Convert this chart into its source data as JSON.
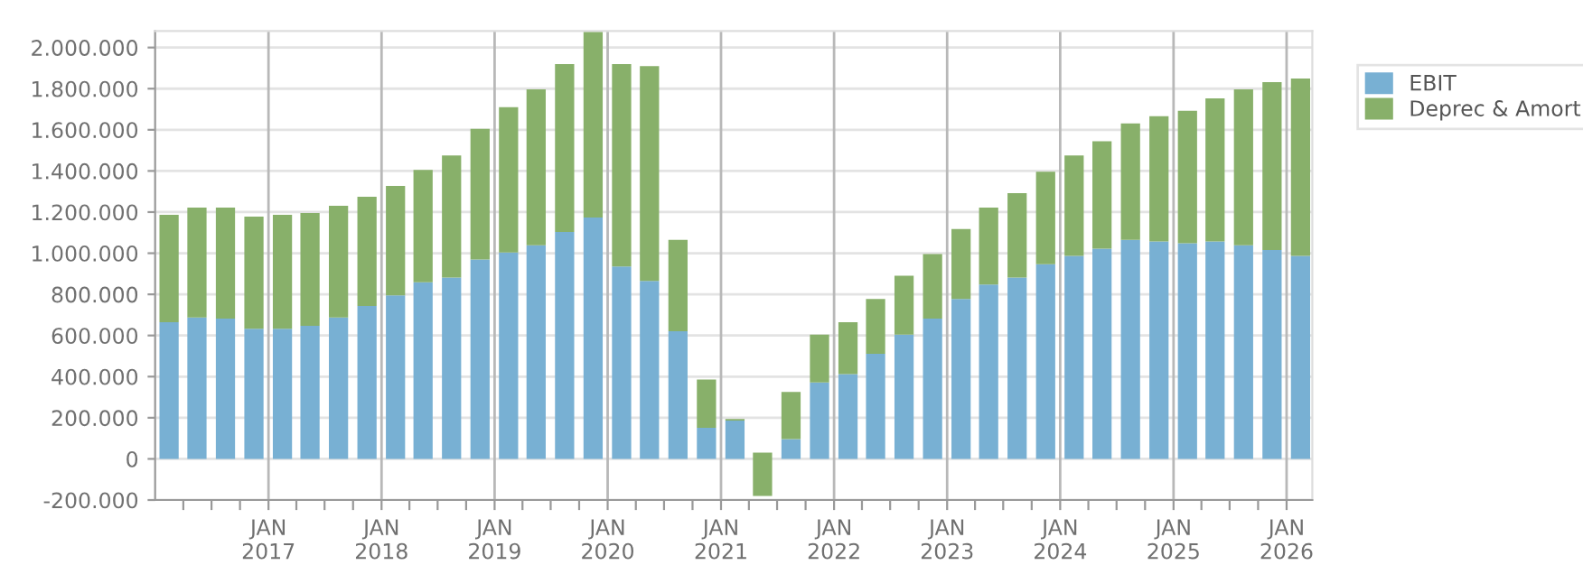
{
  "chart_data": {
    "type": "bar",
    "stacked": true,
    "x": [
      "2016-02-15",
      "2016-05-15",
      "2016-08-15",
      "2016-11-15",
      "2017-02-15",
      "2017-05-15",
      "2017-08-15",
      "2017-11-15",
      "2018-02-15",
      "2018-05-15",
      "2018-08-15",
      "2018-11-15",
      "2019-02-15",
      "2019-05-15",
      "2019-08-15",
      "2019-11-15",
      "2020-02-15",
      "2020-05-15",
      "2020-08-15",
      "2020-11-15",
      "2021-02-15",
      "2021-05-15",
      "2021-08-15",
      "2021-11-15",
      "2022-02-15",
      "2022-05-15",
      "2022-08-15",
      "2022-11-15",
      "2023-02-15",
      "2023-05-15",
      "2023-08-15",
      "2023-11-15",
      "2024-02-15",
      "2024-05-15",
      "2024-08-15",
      "2024-11-15",
      "2025-02-15",
      "2025-05-15",
      "2025-08-15",
      "2025-11-15",
      "2026-02-15"
    ],
    "series": [
      {
        "name": "EBIT",
        "color": "#78b0d3",
        "values": [
          665000,
          688000,
          682000,
          633000,
          633000,
          647000,
          688000,
          743000,
          795000,
          859000,
          882000,
          970000,
          1004000,
          1039000,
          1103000,
          1173000,
          935000,
          865000,
          621000,
          151000,
          186000,
          null,
          96000,
          372000,
          412000,
          511000,
          604000,
          682000,
          778000,
          848000,
          882000,
          946000,
          987000,
          1022000,
          1065000,
          1057000,
          1048000,
          1057000,
          1039000,
          1016000,
          987000
        ]
      },
      {
        "name": "Deprec & Amort",
        "color": "#88b06a",
        "values": [
          522000,
          534000,
          540000,
          545000,
          554000,
          549000,
          543000,
          531000,
          532000,
          546000,
          593000,
          635000,
          706000,
          758000,
          816000,
          902000,
          984000,
          1045000,
          444000,
          235000,
          8000,
          210000,
          229000,
          232000,
          253000,
          267000,
          287000,
          314000,
          340000,
          374000,
          410000,
          450000,
          488000,
          522000,
          566000,
          609000,
          644000,
          696000,
          758000,
          816000,
          862000
        ],
        "base": [
          null,
          null,
          null,
          null,
          null,
          null,
          null,
          null,
          null,
          null,
          null,
          null,
          null,
          null,
          null,
          null,
          null,
          null,
          null,
          null,
          null,
          -180000,
          null,
          null,
          null,
          null,
          null,
          null,
          null,
          null,
          null,
          null,
          null,
          null,
          null,
          null,
          null,
          null,
          null,
          null,
          null
        ]
      }
    ],
    "xlim": [
      "2016-01-01",
      "2026-03-25"
    ],
    "xticks": [
      {
        "value": "2016-04-01",
        "label": null
      },
      {
        "value": "2016-07-01",
        "label": null
      },
      {
        "value": "2016-10-01",
        "label": null
      },
      {
        "value": "2017-01-01",
        "label": "JAN\n2017"
      },
      {
        "value": "2017-04-01",
        "label": null
      },
      {
        "value": "2017-07-01",
        "label": null
      },
      {
        "value": "2017-10-01",
        "label": null
      },
      {
        "value": "2018-01-01",
        "label": "JAN\n2018"
      },
      {
        "value": "2018-04-01",
        "label": null
      },
      {
        "value": "2018-07-01",
        "label": null
      },
      {
        "value": "2018-10-01",
        "label": null
      },
      {
        "value": "2019-01-01",
        "label": "JAN\n2019"
      },
      {
        "value": "2019-04-01",
        "label": null
      },
      {
        "value": "2019-07-01",
        "label": null
      },
      {
        "value": "2019-10-01",
        "label": null
      },
      {
        "value": "2020-01-01",
        "label": "JAN\n2020"
      },
      {
        "value": "2020-04-01",
        "label": null
      },
      {
        "value": "2020-07-01",
        "label": null
      },
      {
        "value": "2020-10-01",
        "label": null
      },
      {
        "value": "2021-01-01",
        "label": "JAN\n2021"
      },
      {
        "value": "2021-04-01",
        "label": null
      },
      {
        "value": "2021-07-01",
        "label": null
      },
      {
        "value": "2021-10-01",
        "label": null
      },
      {
        "value": "2022-01-01",
        "label": "JAN\n2022"
      },
      {
        "value": "2022-04-01",
        "label": null
      },
      {
        "value": "2022-07-01",
        "label": null
      },
      {
        "value": "2022-10-01",
        "label": null
      },
      {
        "value": "2023-01-01",
        "label": "JAN\n2023"
      },
      {
        "value": "2023-04-01",
        "label": null
      },
      {
        "value": "2023-07-01",
        "label": null
      },
      {
        "value": "2023-10-01",
        "label": null
      },
      {
        "value": "2024-01-01",
        "label": "JAN\n2024"
      },
      {
        "value": "2024-04-01",
        "label": null
      },
      {
        "value": "2024-07-01",
        "label": null
      },
      {
        "value": "2024-10-01",
        "label": null
      },
      {
        "value": "2025-01-01",
        "label": "JAN\n2025"
      },
      {
        "value": "2025-04-01",
        "label": null
      },
      {
        "value": "2025-07-01",
        "label": null
      },
      {
        "value": "2025-10-01",
        "label": null
      },
      {
        "value": "2026-01-01",
        "label": "JAN\n2026"
      }
    ],
    "ylim": [
      -200000,
      2080000
    ],
    "yticks": [
      {
        "value": -200000,
        "label": "-200.000"
      },
      {
        "value": 0,
        "label": "0"
      },
      {
        "value": 200000,
        "label": "200.000"
      },
      {
        "value": 400000,
        "label": "400.000"
      },
      {
        "value": 600000,
        "label": "600.000"
      },
      {
        "value": 800000,
        "label": "800.000"
      },
      {
        "value": 1000000,
        "label": "1.000.000"
      },
      {
        "value": 1200000,
        "label": "1.200.000"
      },
      {
        "value": 1400000,
        "label": "1.400.000"
      },
      {
        "value": 1600000,
        "label": "1.600.000"
      },
      {
        "value": 1800000,
        "label": "1.800.000"
      },
      {
        "value": 2000000,
        "label": "2.000.000"
      }
    ],
    "grid": true,
    "legend": "right"
  }
}
